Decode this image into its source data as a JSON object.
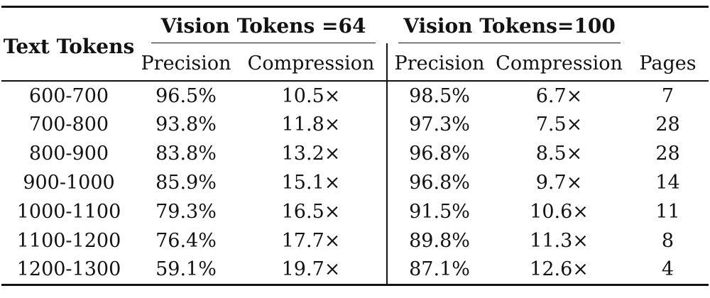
{
  "table": {
    "stub_header": "Text Tokens",
    "groups": {
      "g64_label": "Vision Tokens =64",
      "g100_label": "Vision Tokens=100"
    },
    "subheaders": {
      "precision_64": "Precision",
      "compression_64": "Compression",
      "precision_100": "Precision",
      "compression_100": "Compression",
      "pages": "Pages"
    },
    "rows": [
      [
        "600-700",
        "96.5%",
        "10.5×",
        "98.5%",
        "6.7×",
        "7"
      ],
      [
        "700-800",
        "93.8%",
        "11.8×",
        "97.3%",
        "7.5×",
        "28"
      ],
      [
        "800-900",
        "83.8%",
        "13.2×",
        "96.8%",
        "8.5×",
        "28"
      ],
      [
        "900-1000",
        "85.9%",
        "15.1×",
        "96.8%",
        "9.7×",
        "14"
      ],
      [
        "1000-1100",
        "79.3%",
        "16.5×",
        "91.5%",
        "10.6×",
        "11"
      ],
      [
        "1100-1200",
        "76.4%",
        "17.7×",
        "89.8%",
        "11.3×",
        "8"
      ],
      [
        "1200-1300",
        "59.1%",
        "19.7×",
        "87.1%",
        "12.6×",
        "4"
      ]
    ],
    "colors": {
      "text": "#121212",
      "rule": "#121212",
      "background": "#ffffff"
    }
  }
}
